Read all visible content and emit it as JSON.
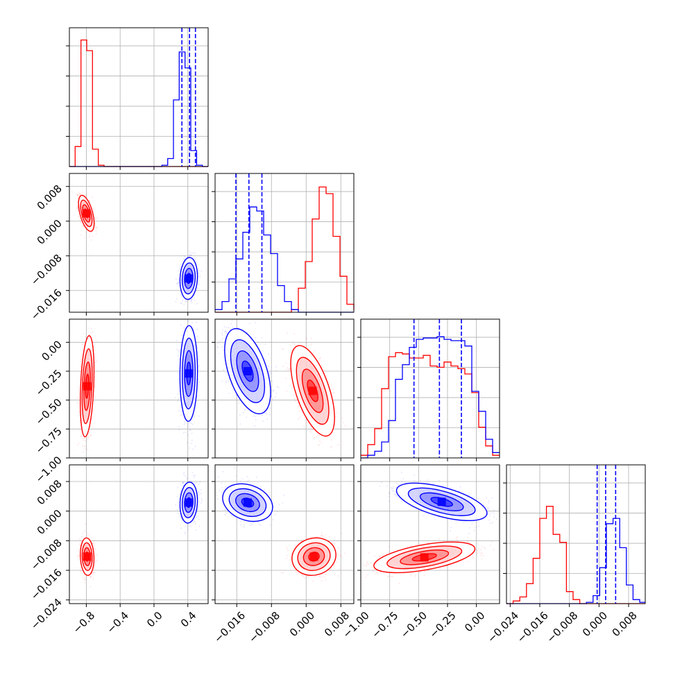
{
  "chart_data": [
    {
      "type": "corner",
      "variables": 4,
      "colors": {
        "run_a": "#ff0000",
        "run_b": "#0000ff"
      },
      "grid": true,
      "ranges": [
        [
          -1.0,
          0.64
        ],
        [
          -0.021,
          0.011
        ],
        [
          -1.0,
          0.2
        ],
        [
          -0.025,
          0.0125
        ]
      ],
      "ticks": [
        [
          -0.8,
          -0.4,
          0.0,
          0.4
        ],
        [
          -0.016,
          -0.008,
          0.0,
          0.008
        ],
        [
          -1.0,
          -0.75,
          -0.5,
          -0.25,
          0.0
        ],
        [
          -0.024,
          -0.016,
          -0.008,
          0.0,
          0.008
        ]
      ],
      "tick_labels": [
        [
          "−0.8",
          "−0.4",
          "0.0",
          "0.4"
        ],
        [
          "−0.016",
          "−0.008",
          "0.000",
          "0.008"
        ],
        [
          "−1.00",
          "−0.75",
          "−0.50",
          "−0.25",
          "0.00"
        ],
        [
          "−0.024",
          "−0.016",
          "−0.008",
          "0.000",
          "0.008"
        ]
      ],
      "y_tick_labels": [
        null,
        [
          "−0.016",
          "−0.008",
          "0.000",
          "0.008"
        ],
        [
          "−1.00",
          "−0.75",
          "−0.50",
          "−0.25",
          "0.00"
        ],
        [
          "−0.024",
          "−0.016",
          "−0.008",
          "0.000",
          "0.008"
        ]
      ]
    },
    {
      "type": "histogram",
      "panel": "marginal-1",
      "x_start": -1.0,
      "x_step": 0.06834,
      "series": [
        {
          "color": "#ff0000",
          "values": [
            0,
            0.15,
            0.95,
            0.87,
            0.13,
            0.01,
            0,
            0,
            0,
            0,
            0,
            0,
            0,
            0,
            0,
            0,
            0,
            0,
            0,
            0,
            0,
            0,
            0,
            0
          ]
        },
        {
          "color": "#0000ff",
          "values": [
            0,
            0,
            0,
            0,
            0,
            0,
            0,
            0,
            0,
            0,
            0,
            0,
            0,
            0,
            0,
            0,
            0.01,
            0.06,
            0.5,
            0.86,
            0.74,
            0.12,
            0.01,
            0
          ]
        }
      ],
      "quantiles": [
        0.33,
        0.42,
        0.49
      ]
    },
    {
      "type": "histogram",
      "panel": "marginal-2",
      "x_start": -0.021,
      "x_step": 0.0016,
      "series": [
        {
          "color": "#ff0000",
          "values": [
            0,
            0,
            0,
            0,
            0,
            0,
            0,
            0,
            0,
            0,
            0,
            0.02,
            0.18,
            0.38,
            0.7,
            0.94,
            0.89,
            0.57,
            0.27,
            0.06,
            0.02
          ]
        },
        {
          "color": "#0000ff",
          "values": [
            0.02,
            0.08,
            0.25,
            0.4,
            0.6,
            0.79,
            0.76,
            0.58,
            0.44,
            0.2,
            0.08,
            0.02,
            0,
            0,
            0,
            0,
            0,
            0,
            0,
            0,
            0
          ]
        }
      ],
      "quantiles": [
        -0.0162,
        -0.0132,
        -0.0102
      ]
    },
    {
      "type": "histogram",
      "panel": "marginal-3",
      "x_start": -1.0,
      "x_step": 0.06,
      "series": [
        {
          "color": "#ff0000",
          "values": [
            0.02,
            0.1,
            0.22,
            0.52,
            0.76,
            0.79,
            0.78,
            0.75,
            0.75,
            0.77,
            0.69,
            0.68,
            0.72,
            0.69,
            0.67,
            0.63,
            0.49,
            0.23,
            0.09,
            0.02
          ]
        },
        {
          "color": "#0000ff",
          "values": [
            0,
            0.02,
            0.05,
            0.12,
            0.28,
            0.59,
            0.7,
            0.83,
            0.89,
            0.9,
            0.9,
            0.91,
            0.89,
            0.88,
            0.88,
            0.84,
            0.5,
            0.35,
            0.14,
            0.04
          ]
        }
      ],
      "quantiles": [
        -0.54,
        -0.32,
        -0.13
      ]
    },
    {
      "type": "histogram",
      "panel": "marginal-4",
      "x_start": -0.025,
      "x_step": 0.0018,
      "series": [
        {
          "color": "#ff0000",
          "values": [
            0,
            0.02,
            0.05,
            0.15,
            0.34,
            0.64,
            0.73,
            0.52,
            0.46,
            0.09,
            0.03,
            0,
            0,
            0,
            0,
            0,
            0,
            0,
            0,
            0,
            0
          ]
        },
        {
          "color": "#0000ff",
          "values": [
            0,
            0,
            0,
            0,
            0,
            0,
            0,
            0,
            0,
            0,
            0,
            0,
            0.01,
            0.06,
            0.27,
            0.6,
            0.64,
            0.42,
            0.14,
            0.03,
            0.01
          ]
        }
      ],
      "quantiles": [
        -0.0005,
        0.0018,
        0.0045
      ]
    },
    {
      "type": "scatter-density",
      "panel": "joint-2-1",
      "series": [
        {
          "color": "#ff0000",
          "center": [
            -0.8,
            0.0018
          ],
          "spread": [
            0.04,
            0.0018
          ],
          "correlation": -0.55
        },
        {
          "color": "#0000ff",
          "center": [
            0.41,
            -0.0132
          ],
          "spread": [
            0.045,
            0.0021
          ],
          "correlation": 0.1
        }
      ]
    },
    {
      "type": "scatter-density",
      "panel": "joint-3-1",
      "series": [
        {
          "color": "#ff0000",
          "center": [
            -0.79,
            -0.38
          ],
          "spread": [
            0.035,
            0.19
          ],
          "correlation": 0.3
        },
        {
          "color": "#0000ff",
          "center": [
            0.41,
            -0.27
          ],
          "spread": [
            0.045,
            0.18
          ],
          "correlation": 0.05
        }
      ]
    },
    {
      "type": "scatter-density",
      "panel": "joint-3-2",
      "series": [
        {
          "color": "#ff0000",
          "center": [
            0.0015,
            -0.42
          ],
          "spread": [
            0.0022,
            0.17
          ],
          "correlation": -0.6
        },
        {
          "color": "#0000ff",
          "center": [
            -0.0135,
            -0.25
          ],
          "spread": [
            0.0023,
            0.16
          ],
          "correlation": -0.5
        }
      ]
    },
    {
      "type": "scatter-density",
      "panel": "joint-4-1",
      "series": [
        {
          "color": "#ff0000",
          "center": [
            -0.79,
            -0.0123
          ],
          "spread": [
            0.035,
            0.0022
          ],
          "correlation": -0.1
        },
        {
          "color": "#0000ff",
          "center": [
            0.41,
            0.0023
          ],
          "spread": [
            0.045,
            0.0024
          ],
          "correlation": 0.1
        }
      ]
    },
    {
      "type": "scatter-density",
      "panel": "joint-4-2",
      "series": [
        {
          "color": "#ff0000",
          "center": [
            0.0018,
            -0.0123
          ],
          "spread": [
            0.0022,
            0.0022
          ],
          "correlation": 0.1
        },
        {
          "color": "#0000ff",
          "center": [
            -0.0135,
            0.0023
          ],
          "spread": [
            0.0025,
            0.0022
          ],
          "correlation": -0.25
        }
      ]
    },
    {
      "type": "scatter-density",
      "panel": "joint-4-3",
      "series": [
        {
          "color": "#ff0000",
          "center": [
            -0.45,
            -0.0125
          ],
          "spread": [
            0.19,
            0.0018
          ],
          "correlation": 0.55
        },
        {
          "color": "#0000ff",
          "center": [
            -0.3,
            0.0025
          ],
          "spread": [
            0.17,
            0.0022
          ],
          "correlation": -0.6
        }
      ]
    }
  ]
}
